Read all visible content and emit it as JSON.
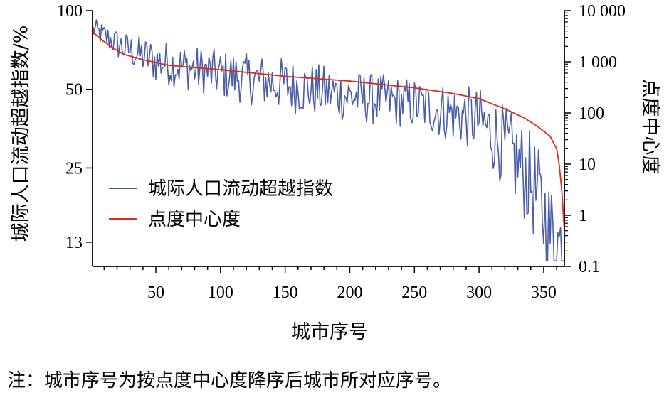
{
  "chart_data": {
    "type": "line",
    "xlabel": "城市序号",
    "ylabel_left": "城际人口流动超越指数/%",
    "ylabel_right": "点度中心度",
    "x_ticks": [
      50,
      100,
      150,
      200,
      250,
      300,
      350
    ],
    "xlim": [
      1,
      366
    ],
    "left_axis": {
      "scale": "log",
      "ticks": [
        13,
        25,
        50,
        100
      ],
      "tick_labels": [
        "13",
        "25",
        "50",
        "100"
      ],
      "ylim": [
        10.5,
        100
      ]
    },
    "right_axis": {
      "scale": "log",
      "ticks": [
        0.1,
        1,
        10,
        100,
        1000,
        10000
      ],
      "tick_labels": [
        "0.1",
        "1",
        "10",
        "100",
        "1 000",
        "10 000"
      ],
      "ylim": [
        0.1,
        10000
      ]
    },
    "legend": {
      "position": "lower-left",
      "entries": [
        "城际人口流动超越指数",
        "点度中心度"
      ]
    },
    "grid": false,
    "series": [
      {
        "name": "城际人口流动超越指数",
        "color": "#4a5fa8",
        "axis": "left",
        "trend": [
          [
            1,
            85
          ],
          [
            10,
            80
          ],
          [
            25,
            72
          ],
          [
            50,
            64
          ],
          [
            100,
            57
          ],
          [
            150,
            52
          ],
          [
            200,
            47
          ],
          [
            250,
            44
          ],
          [
            300,
            38
          ],
          [
            320,
            30
          ],
          [
            340,
            22
          ],
          [
            355,
            14
          ],
          [
            366,
            12
          ]
        ],
        "amplitude": [
          [
            1,
            0.06
          ],
          [
            50,
            0.12
          ],
          [
            150,
            0.15
          ],
          [
            250,
            0.14
          ],
          [
            300,
            0.18
          ],
          [
            340,
            0.28
          ],
          [
            366,
            0.32
          ]
        ]
      },
      {
        "name": "点度中心度",
        "color": "#e02a1a",
        "axis": "right",
        "points": [
          [
            1,
            5000
          ],
          [
            3,
            3500
          ],
          [
            8,
            2700
          ],
          [
            15,
            2000
          ],
          [
            25,
            1400
          ],
          [
            40,
            1100
          ],
          [
            60,
            850
          ],
          [
            100,
            700
          ],
          [
            150,
            520
          ],
          [
            200,
            420
          ],
          [
            250,
            310
          ],
          [
            280,
            240
          ],
          [
            300,
            190
          ],
          [
            320,
            120
          ],
          [
            335,
            80
          ],
          [
            345,
            55
          ],
          [
            355,
            35
          ],
          [
            360,
            20
          ],
          [
            362,
            10
          ],
          [
            364,
            3
          ],
          [
            366,
            0.5
          ]
        ]
      }
    ]
  },
  "note": "注：城市序号为按点度中心度降序后城市所对应序号。"
}
